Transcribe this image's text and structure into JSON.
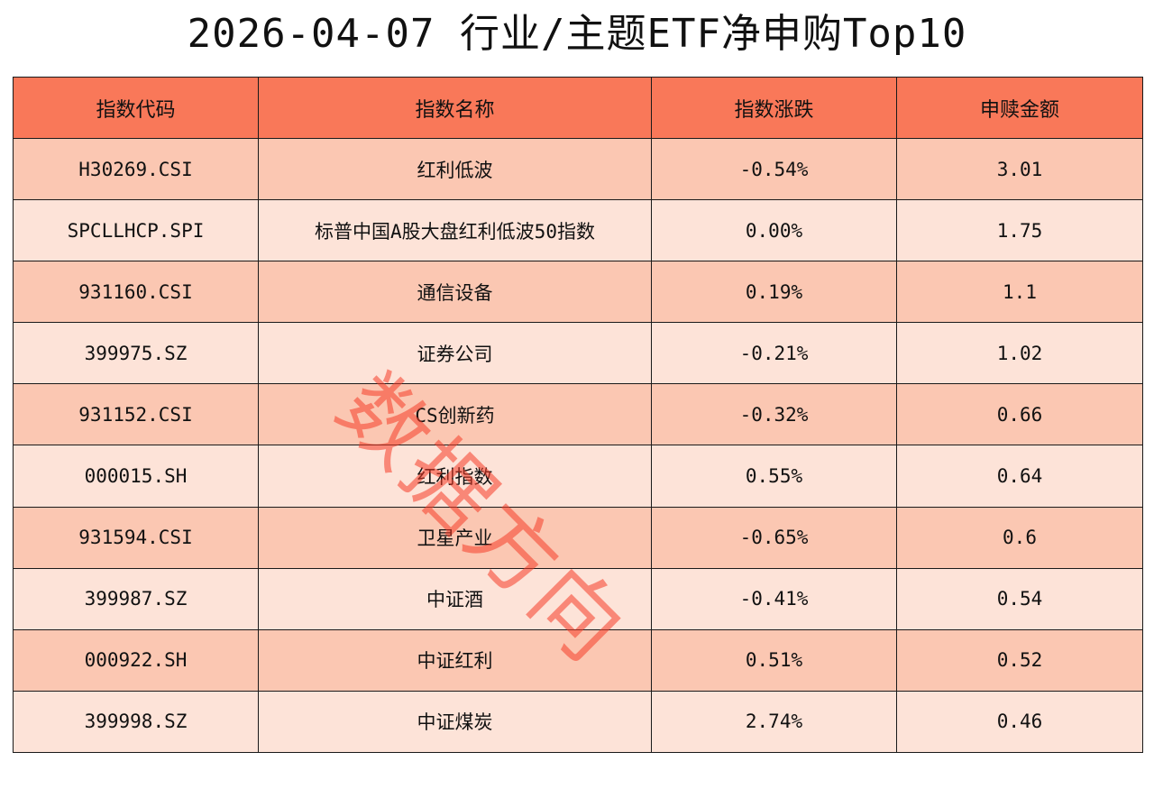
{
  "title": "2026-04-07 行业/主题ETF净申购Top10",
  "columns": [
    "指数代码",
    "指数名称",
    "指数涨跌",
    "申赎金额"
  ],
  "rows": [
    {
      "code": "H30269.CSI",
      "name": "红利低波",
      "change": "-0.54%",
      "amount": "3.01"
    },
    {
      "code": "SPCLLHCP.SPI",
      "name": "标普中国A股大盘红利低波50指数",
      "change": "0.00%",
      "amount": "1.75"
    },
    {
      "code": "931160.CSI",
      "name": "通信设备",
      "change": "0.19%",
      "amount": "1.1"
    },
    {
      "code": "399975.SZ",
      "name": "证券公司",
      "change": "-0.21%",
      "amount": "1.02"
    },
    {
      "code": "931152.CSI",
      "name": "CS创新药",
      "change": "-0.32%",
      "amount": "0.66"
    },
    {
      "code": "000015.SH",
      "name": "红利指数",
      "change": "0.55%",
      "amount": "0.64"
    },
    {
      "code": "931594.CSI",
      "name": "卫星产业",
      "change": "-0.65%",
      "amount": "0.6"
    },
    {
      "code": "399987.SZ",
      "name": "中证酒",
      "change": "-0.41%",
      "amount": "0.54"
    },
    {
      "code": "000922.SH",
      "name": "中证红利",
      "change": "0.51%",
      "amount": "0.52"
    },
    {
      "code": "399998.SZ",
      "name": "中证煤炭",
      "change": "2.74%",
      "amount": "0.46"
    }
  ],
  "watermark": "数据方向",
  "colors": {
    "header_bg": "#f97859",
    "row_odd_bg": "#fbc7b2",
    "row_even_bg": "#fde3d8",
    "watermark": "#f53c28"
  }
}
